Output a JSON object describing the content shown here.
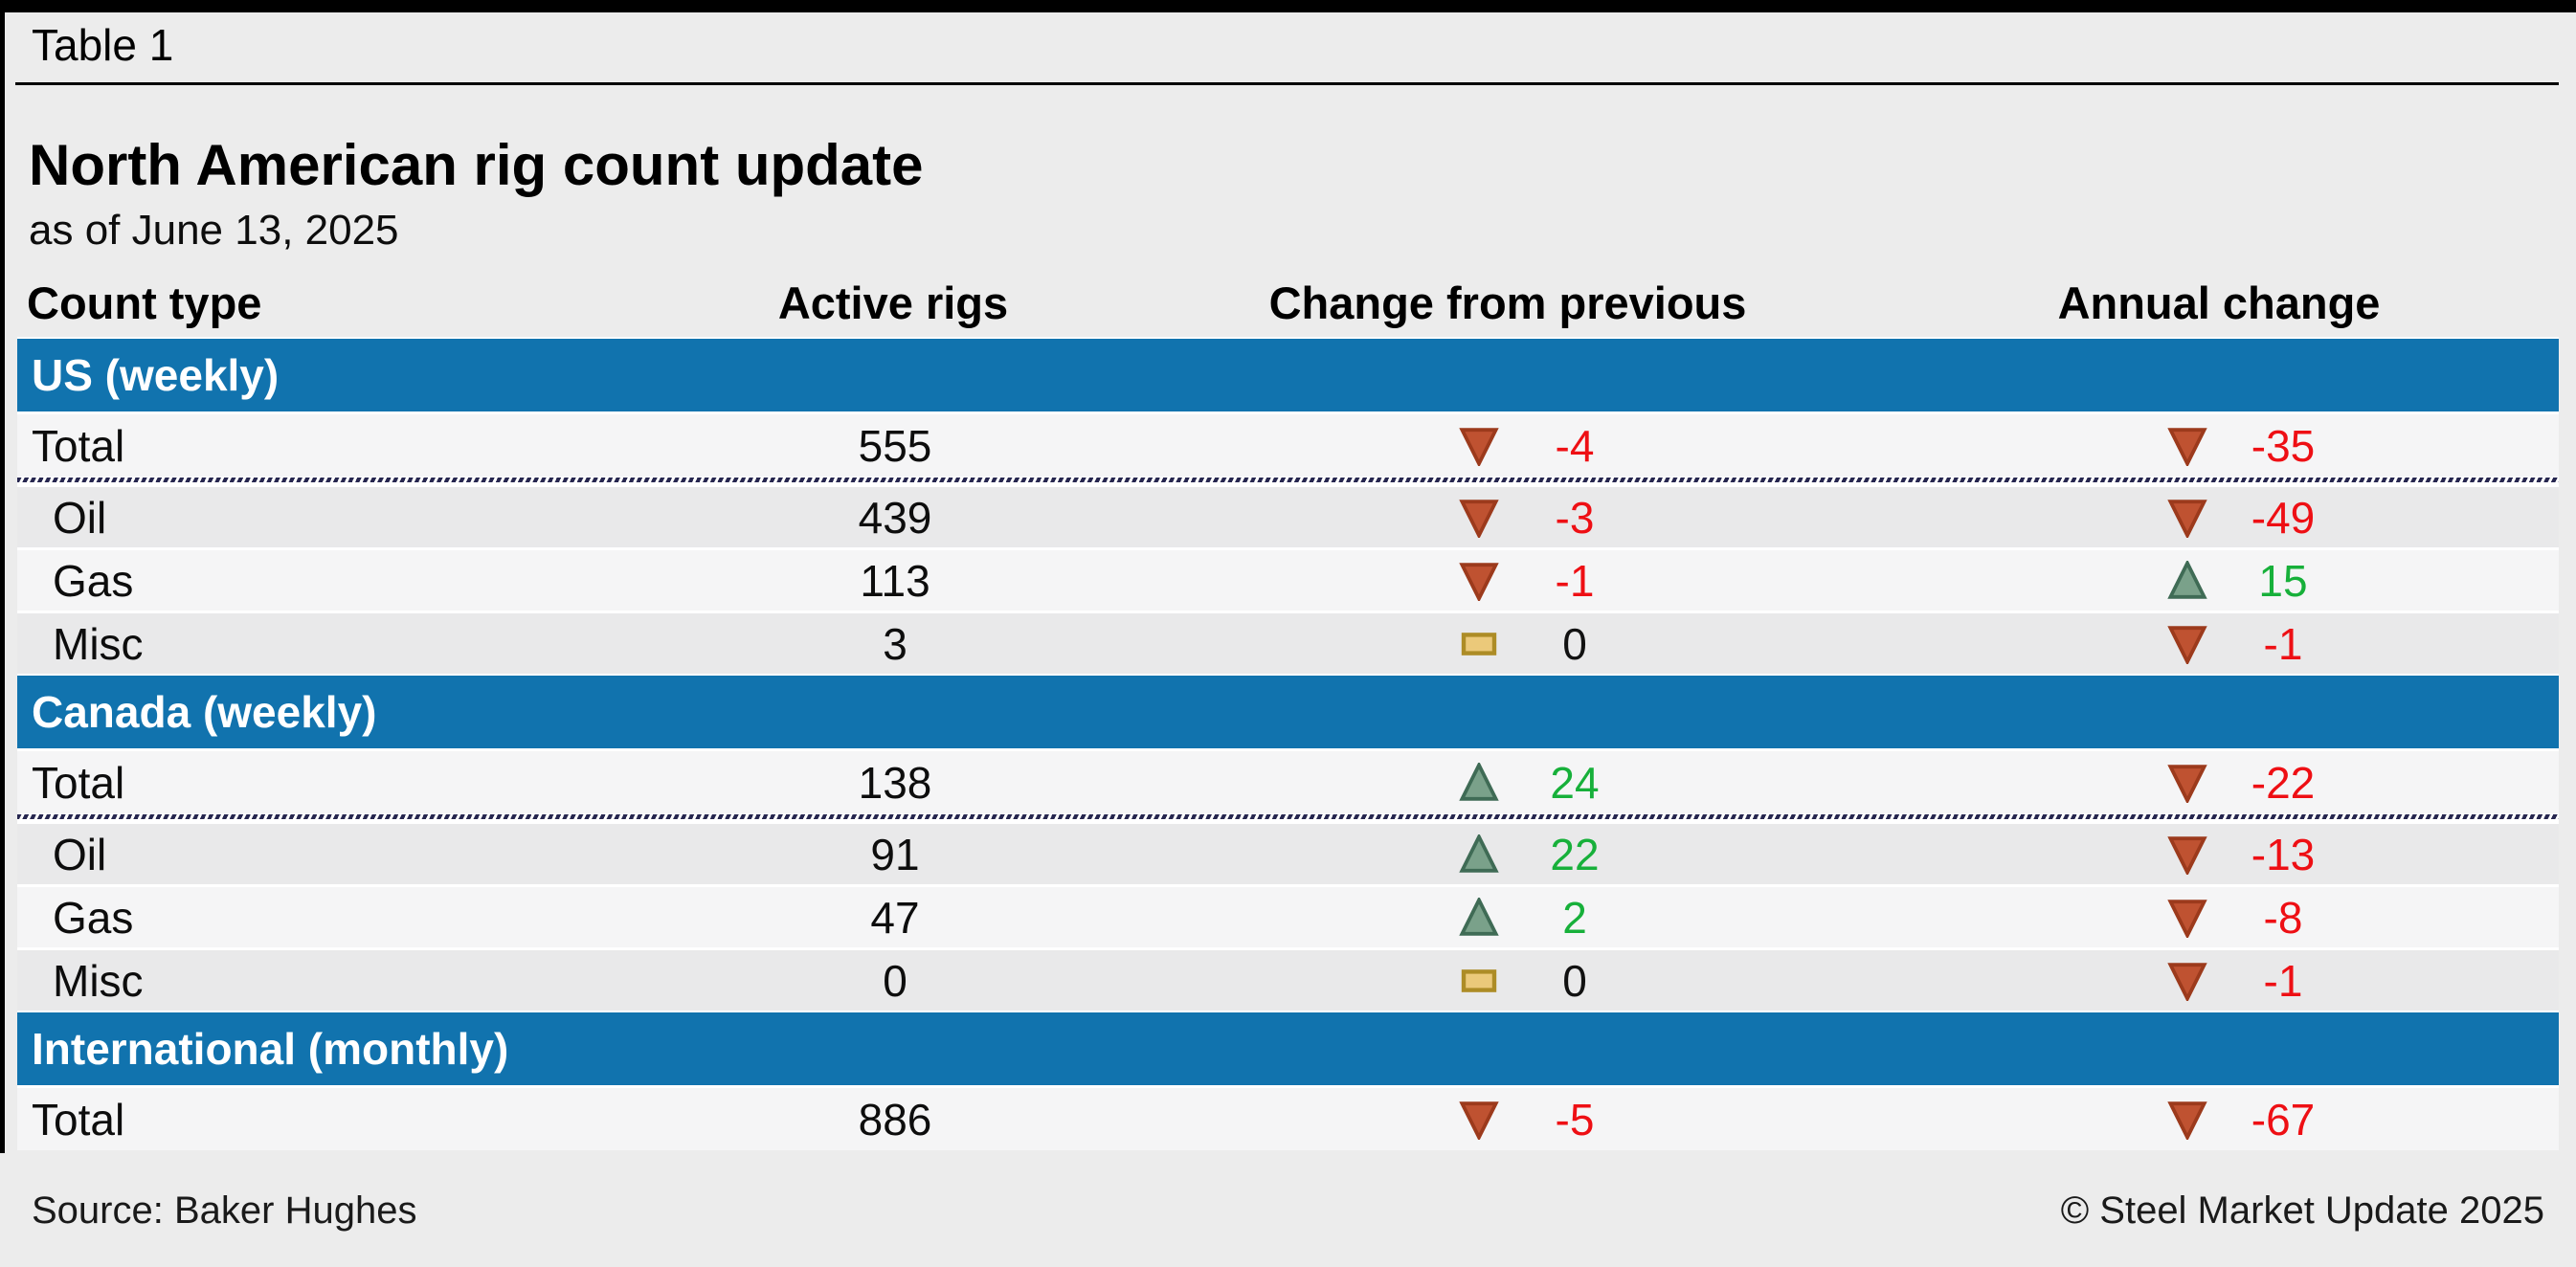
{
  "page": {
    "label": "Table 1"
  },
  "header": {
    "title": "North American rig count update",
    "subtitle": "as of June 13, 2025"
  },
  "columns": [
    "Count type",
    "Active rigs",
    "Change from previous",
    "Annual change"
  ],
  "colors": {
    "accent_blue": "#1173ae",
    "negative_red": "#ee0f14",
    "positive_green": "#17b03a",
    "down_arrow_fill": "#bf5231",
    "down_arrow_stroke": "#9c3a1c",
    "up_arrow_fill": "#7aa18a",
    "up_arrow_stroke": "#3f6b55",
    "flat_fill": "#ebc97a",
    "flat_stroke": "#ad8c26"
  },
  "sections": [
    {
      "name": "US (weekly)",
      "rows": [
        {
          "label": "Total",
          "total": true,
          "active": "555",
          "change": {
            "dir": "down",
            "value": "-4"
          },
          "annual": {
            "dir": "down",
            "value": "-35"
          }
        },
        {
          "label": "Oil",
          "total": false,
          "active": "439",
          "change": {
            "dir": "down",
            "value": "-3"
          },
          "annual": {
            "dir": "down",
            "value": "-49"
          }
        },
        {
          "label": "Gas",
          "total": false,
          "active": "113",
          "change": {
            "dir": "down",
            "value": "-1"
          },
          "annual": {
            "dir": "up",
            "value": "15"
          }
        },
        {
          "label": "Misc",
          "total": false,
          "active": "3",
          "change": {
            "dir": "flat",
            "value": "0"
          },
          "annual": {
            "dir": "down",
            "value": "-1"
          }
        }
      ]
    },
    {
      "name": "Canada (weekly)",
      "rows": [
        {
          "label": "Total",
          "total": true,
          "active": "138",
          "change": {
            "dir": "up",
            "value": "24"
          },
          "annual": {
            "dir": "down",
            "value": "-22"
          }
        },
        {
          "label": "Oil",
          "total": false,
          "active": "91",
          "change": {
            "dir": "up",
            "value": "22"
          },
          "annual": {
            "dir": "down",
            "value": "-13"
          }
        },
        {
          "label": "Gas",
          "total": false,
          "active": "47",
          "change": {
            "dir": "up",
            "value": "2"
          },
          "annual": {
            "dir": "down",
            "value": "-8"
          }
        },
        {
          "label": "Misc",
          "total": false,
          "active": "0",
          "change": {
            "dir": "flat",
            "value": "0"
          },
          "annual": {
            "dir": "down",
            "value": "-1"
          }
        }
      ]
    },
    {
      "name": "International (monthly)",
      "rows": [
        {
          "label": "Total",
          "total": true,
          "active": "886",
          "change": {
            "dir": "down",
            "value": "-5"
          },
          "annual": {
            "dir": "down",
            "value": "-67"
          }
        }
      ]
    }
  ],
  "footer": {
    "source": "Source: Baker Hughes",
    "copyright": "© Steel Market Update 2025"
  }
}
